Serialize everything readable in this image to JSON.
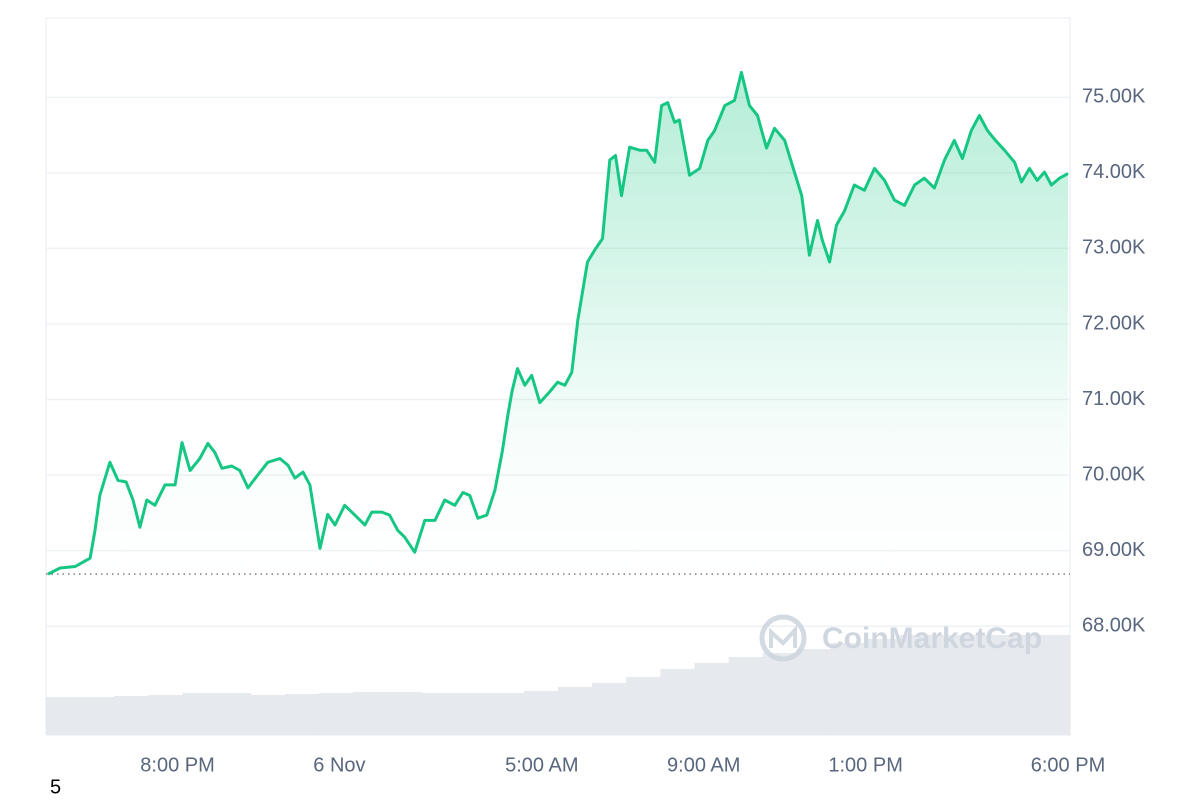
{
  "chart_data": {
    "type": "line",
    "color": "#16c784",
    "x": [
      16.8,
      17.1,
      17.47,
      17.84,
      17.96,
      18.08,
      18.33,
      18.53,
      18.73,
      18.9,
      19.07,
      19.24,
      19.44,
      19.69,
      19.94,
      20.11,
      20.31,
      20.55,
      20.75,
      20.92,
      21.1,
      21.34,
      21.54,
      21.74,
      21.98,
      22.23,
      22.53,
      22.73,
      22.9,
      23.1,
      23.27,
      23.52,
      23.71,
      23.89,
      24.13,
      24.38,
      24.63,
      24.8,
      25.05,
      25.24,
      25.44,
      25.61,
      25.86,
      26.11,
      26.36,
      26.6,
      26.85,
      27.05,
      27.22,
      27.42,
      27.64,
      27.84,
      28.03,
      28.16,
      28.26,
      28.4,
      28.58,
      28.75,
      28.95,
      29.19,
      29.39,
      29.57,
      29.74,
      29.89,
      30.13,
      30.31,
      30.5,
      30.68,
      30.82,
      30.97,
      31.17,
      31.42,
      31.59,
      31.79,
      31.96,
      32.11,
      32.28,
      32.4,
      32.65,
      32.9,
      33.1,
      33.27,
      33.52,
      33.76,
      33.93,
      34.13,
      34.33,
      34.55,
      34.75,
      35.0,
      35.24,
      35.42,
      35.61,
      35.81,
      35.93,
      36.11,
      36.28,
      36.48,
      36.72,
      36.97,
      37.22,
      37.47,
      37.71,
      37.96,
      38.21,
      38.45,
      38.7,
      38.95,
      39.19,
      39.39,
      39.61,
      39.81,
      40.01,
      40.21,
      40.43,
      40.68,
      40.85,
      41.05,
      41.24,
      41.42,
      41.59,
      41.79,
      42.0
    ],
    "values": [
      68690,
      68770,
      68790,
      68900,
      69270,
      69730,
      70170,
      69930,
      69910,
      69670,
      69310,
      69670,
      69600,
      69870,
      69870,
      70430,
      70060,
      70220,
      70420,
      70300,
      70090,
      70120,
      70060,
      69830,
      70000,
      70170,
      70220,
      70130,
      69960,
      70040,
      69870,
      69030,
      69480,
      69340,
      69600,
      69470,
      69340,
      69510,
      69510,
      69470,
      69270,
      69180,
      68980,
      69400,
      69400,
      69670,
      69600,
      69770,
      69730,
      69430,
      69470,
      69800,
      70330,
      70790,
      71100,
      71410,
      71190,
      71320,
      70960,
      71100,
      71230,
      71190,
      71360,
      72050,
      72820,
      72980,
      73130,
      74170,
      74230,
      73700,
      74340,
      74300,
      74300,
      74140,
      74890,
      74930,
      74670,
      74700,
      73970,
      74060,
      74430,
      74560,
      74890,
      74960,
      75330,
      74890,
      74760,
      74330,
      74590,
      74430,
      74010,
      73700,
      72910,
      73370,
      73110,
      72820,
      73310,
      73500,
      73840,
      73770,
      74060,
      73900,
      73640,
      73570,
      73840,
      73930,
      73800,
      74170,
      74430,
      74190,
      74560,
      74760,
      74560,
      74430,
      74300,
      74140,
      73880,
      74060,
      73900,
      74010,
      73840,
      73930,
      73990
    ],
    "baseline": 68690,
    "xlim": [
      16.8,
      42
    ],
    "xticks": [
      {
        "value": 20,
        "label": "8:00 PM"
      },
      {
        "value": 24,
        "label": "6 Nov"
      },
      {
        "value": 29,
        "label": "5:00 AM"
      },
      {
        "value": 33,
        "label": "9:00 AM"
      },
      {
        "value": 37,
        "label": "1:00 PM"
      },
      {
        "value": 42,
        "label": "6:00 PM"
      }
    ],
    "ylim": [
      66560,
      76050
    ],
    "yticks": [
      {
        "value": 68000,
        "label": "68.00K"
      },
      {
        "value": 69000,
        "label": "69.00K"
      },
      {
        "value": 70000,
        "label": "70.00K"
      },
      {
        "value": 71000,
        "label": "71.00K"
      },
      {
        "value": 72000,
        "label": "72.00K"
      },
      {
        "value": 73000,
        "label": "73.00K"
      },
      {
        "value": 74000,
        "label": "74.00K"
      },
      {
        "value": 75000,
        "label": "75.00K"
      }
    ],
    "grid": true,
    "volume": {
      "color": "#e6e9ee",
      "values": [
        38,
        38,
        39,
        40,
        42,
        42,
        40,
        41,
        42,
        43,
        43,
        42,
        42,
        42,
        44,
        48,
        52,
        58,
        66,
        72,
        78,
        82,
        86,
        92,
        96,
        100,
        100,
        100,
        100,
        100
      ]
    },
    "watermark": "CoinMarketCap",
    "footer_text": "5"
  }
}
